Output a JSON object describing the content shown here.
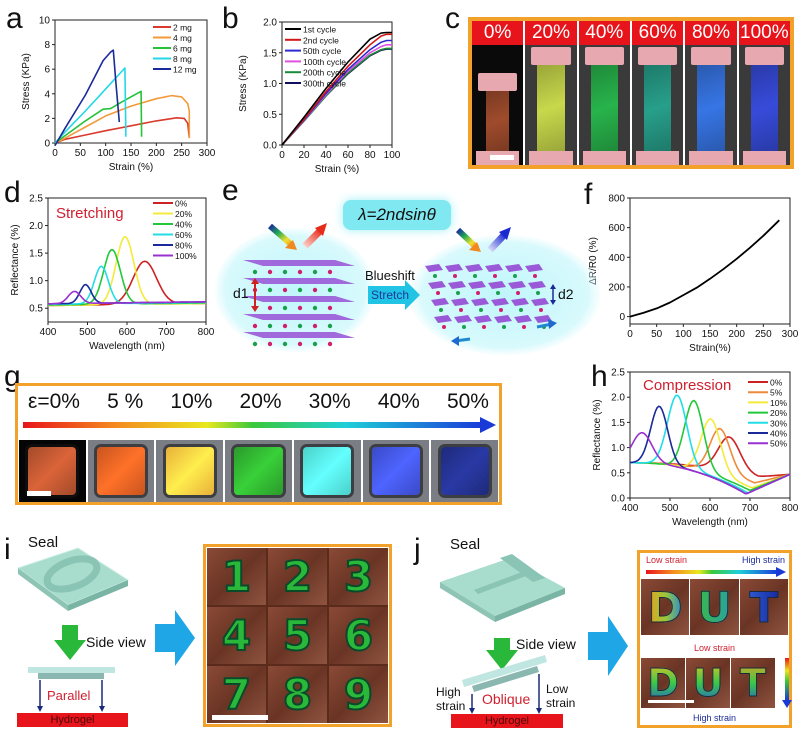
{
  "panel_labels": {
    "a": "a",
    "b": "b",
    "c": "c",
    "d": "d",
    "e": "e",
    "f": "f",
    "g": "g",
    "h": "h",
    "i": "i",
    "j": "j"
  },
  "chart_data": [
    {
      "id": "a",
      "type": "line",
      "xlabel": "Strain (%)",
      "ylabel": "Stress (KPa)",
      "xlim": [
        0,
        300
      ],
      "ylim": [
        0,
        10
      ],
      "xticks": [
        "0",
        "50",
        "100",
        "150",
        "200",
        "250",
        "300"
      ],
      "yticks": [
        "0",
        "2",
        "4",
        "6",
        "8",
        "10"
      ],
      "legend_position": "top-right",
      "series": [
        {
          "name": "2 mg",
          "color": "#d93a2b",
          "x": [
            0,
            20,
            60,
            100,
            150,
            200,
            240,
            255,
            262,
            265
          ],
          "y": [
            0,
            0.3,
            0.65,
            1.0,
            1.4,
            1.8,
            2.05,
            2.0,
            1.6,
            0.4
          ]
        },
        {
          "name": "4 mg",
          "color": "#f39a3a",
          "x": [
            0,
            20,
            60,
            100,
            150,
            200,
            230,
            250,
            262,
            265,
            265
          ],
          "y": [
            0,
            0.4,
            1.3,
            2.2,
            3.0,
            3.6,
            3.85,
            3.75,
            3.2,
            2.6,
            0.4
          ]
        },
        {
          "name": "6 mg",
          "color": "#27c13a",
          "x": [
            0,
            20,
            60,
            95,
            110,
            130,
            170,
            171
          ],
          "y": [
            0,
            0.6,
            1.8,
            2.75,
            2.8,
            3.3,
            4.2,
            0.5
          ]
        },
        {
          "name": "8 mg",
          "color": "#22d8e6",
          "x": [
            0,
            20,
            60,
            100,
            138,
            140
          ],
          "y": [
            0,
            0.9,
            2.6,
            4.4,
            6.1,
            0.5
          ]
        },
        {
          "name": "12 mg",
          "color": "#1a2a9a",
          "x": [
            0,
            20,
            60,
            95,
            110,
            115,
            120,
            127
          ],
          "y": [
            -0.2,
            1.2,
            3.9,
            6.7,
            7.4,
            7.55,
            5.0,
            1.7
          ]
        }
      ]
    },
    {
      "id": "b",
      "type": "line",
      "xlabel": "Strain (%)",
      "ylabel": "Stress (KPa)",
      "xlim": [
        0,
        100
      ],
      "ylim": [
        0,
        2.0
      ],
      "xticks": [
        "0",
        "20",
        "40",
        "60",
        "80",
        "100"
      ],
      "yticks": [
        "0.0",
        "0.5",
        "1.0",
        "1.5",
        "2.0"
      ],
      "legend_position": "top-left",
      "series": [
        {
          "name": "1st cycle",
          "color": "#000000",
          "x": [
            0,
            20,
            40,
            60,
            80,
            90,
            95,
            100
          ],
          "y": [
            0,
            0.45,
            0.92,
            1.35,
            1.72,
            1.82,
            1.83,
            1.83
          ]
        },
        {
          "name": "2nd cycle",
          "color": "#d01818",
          "x": [
            0,
            20,
            40,
            60,
            80,
            90,
            95,
            100
          ],
          "y": [
            0,
            0.42,
            0.87,
            1.28,
            1.63,
            1.77,
            1.8,
            1.8
          ]
        },
        {
          "name": "50th cycle",
          "color": "#2a2ad0",
          "x": [
            0,
            20,
            40,
            60,
            80,
            90,
            95,
            100
          ],
          "y": [
            0,
            0.41,
            0.84,
            1.23,
            1.55,
            1.67,
            1.7,
            1.7
          ]
        },
        {
          "name": "100th cycle",
          "color": "#e050e0",
          "x": [
            0,
            20,
            40,
            60,
            80,
            90,
            95,
            100
          ],
          "y": [
            0,
            0.4,
            0.82,
            1.2,
            1.5,
            1.6,
            1.63,
            1.63
          ]
        },
        {
          "name": "200th cycle",
          "color": "#1a8a3a",
          "x": [
            0,
            20,
            40,
            60,
            80,
            90,
            95,
            100
          ],
          "y": [
            0,
            0.39,
            0.8,
            1.17,
            1.46,
            1.55,
            1.57,
            1.57
          ]
        },
        {
          "name": "300th cycle",
          "color": "#101060",
          "x": [
            0,
            20,
            40,
            60,
            80,
            90,
            95,
            100
          ],
          "y": [
            0,
            0.39,
            0.8,
            1.16,
            1.45,
            1.54,
            1.56,
            1.56
          ]
        }
      ]
    },
    {
      "id": "d",
      "type": "line",
      "title": "Stretching",
      "xlabel": "Wavelength (nm)",
      "ylabel": "Reflectance (%)",
      "xlim": [
        400,
        800
      ],
      "ylim": [
        0.25,
        2.5
      ],
      "xticks": [
        "400",
        "500",
        "600",
        "700",
        "800"
      ],
      "yticks": [
        "0.5",
        "1.0",
        "1.5",
        "2.0",
        "2.5"
      ],
      "legend_position": "top-right",
      "series": [
        {
          "name": "0%",
          "color": "#cc2222",
          "peak": 645,
          "height": 1.33,
          "width": 42,
          "base": 0.55
        },
        {
          "name": "20%",
          "color": "#f4ea3a",
          "peak": 595,
          "height": 1.78,
          "width": 32,
          "base": 0.55
        },
        {
          "name": "40%",
          "color": "#22c83a",
          "peak": 562,
          "height": 1.55,
          "width": 30,
          "base": 0.56
        },
        {
          "name": "60%",
          "color": "#22dde6",
          "peak": 535,
          "height": 1.25,
          "width": 25,
          "base": 0.57
        },
        {
          "name": "80%",
          "color": "#1a2a9a",
          "peak": 495,
          "height": 0.92,
          "width": 20,
          "base": 0.58
        },
        {
          "name": "100%",
          "color": "#9a30d0",
          "peak": 467,
          "height": 0.8,
          "width": 22,
          "base": 0.58
        }
      ]
    },
    {
      "id": "f",
      "type": "line",
      "xlabel": "Strain(%)",
      "ylabel": "ΔR/R0 (%)",
      "xlim": [
        0,
        300
      ],
      "ylim": [
        -50,
        800
      ],
      "xticks": [
        "0",
        "50",
        "100",
        "150",
        "200",
        "250",
        "300"
      ],
      "yticks": [
        "0",
        "200",
        "400",
        "600",
        "800"
      ],
      "series": [
        {
          "name": "response",
          "color": "#000000",
          "x": [
            0,
            25,
            50,
            75,
            100,
            125,
            150,
            175,
            200,
            225,
            250,
            280
          ],
          "y": [
            0,
            25,
            55,
            95,
            145,
            195,
            255,
            320,
            390,
            465,
            545,
            650
          ]
        }
      ]
    },
    {
      "id": "h",
      "type": "line",
      "title": "Compression",
      "xlabel": "Wavelength (nm)",
      "ylabel": "Reflectance (%)",
      "xlim": [
        400,
        800
      ],
      "ylim": [
        0,
        2.5
      ],
      "xticks": [
        "400",
        "500",
        "600",
        "700",
        "800"
      ],
      "yticks": [
        "0.0",
        "0.5",
        "1.0",
        "1.5",
        "2.0",
        "2.5"
      ],
      "legend_position": "top-right",
      "series": [
        {
          "name": "0%",
          "color": "#cc2222",
          "peak": 648,
          "height": 1.35,
          "width": 38,
          "dip": 720,
          "dipval": 0.42
        },
        {
          "name": "5%",
          "color": "#f08a3a",
          "peak": 625,
          "height": 1.55,
          "width": 35,
          "dip": 712,
          "dipval": 0.3
        },
        {
          "name": "10%",
          "color": "#f4ea3a",
          "peak": 602,
          "height": 1.75,
          "width": 34,
          "dip": 705,
          "dipval": 0.2
        },
        {
          "name": "20%",
          "color": "#22c83a",
          "peak": 560,
          "height": 2.05,
          "width": 33,
          "dip": 700,
          "dipval": 0.15
        },
        {
          "name": "30%",
          "color": "#22dde6",
          "peak": 518,
          "height": 2.1,
          "width": 34,
          "dip": 695,
          "dipval": 0.1
        },
        {
          "name": "40%",
          "color": "#1a2a9a",
          "peak": 473,
          "height": 1.83,
          "width": 30,
          "dip": 690,
          "dipval": 0.08
        },
        {
          "name": "50%",
          "color": "#9a30d0",
          "peak": 430,
          "height": 1.28,
          "width": 35,
          "dip": 690,
          "dipval": 0.08
        }
      ]
    }
  ],
  "panel_c": {
    "strains": [
      "0%",
      "20%",
      "40%",
      "60%",
      "80%",
      "100%"
    ],
    "colors": [
      "#7a3a22",
      "#9aa63a",
      "#1f8a3a",
      "#1e7a6a",
      "#2a5ab0",
      "#2a3aa8"
    ]
  },
  "panel_e": {
    "equation": "λ=2ndsinθ",
    "blueshift_label": "Blueshift",
    "stretch_label": "Stretch",
    "d1_label": "d1",
    "d2_label": "d2"
  },
  "panel_g": {
    "strains": [
      "ε=0%",
      "5 %",
      "10%",
      "20%",
      "30%",
      "40%",
      "50%"
    ],
    "colors": [
      "#a24a2a",
      "#c8541e",
      "#e8b03a",
      "#2a9a2a",
      "#4ad0c8",
      "#3a4ac8",
      "#1e2a7a"
    ]
  },
  "panel_i": {
    "seal_label": "Seal",
    "side_view_label": "Side view",
    "mode_label": "Parallel",
    "hydrogel_label": "Hydrogel",
    "digits": [
      "1",
      "2",
      "3",
      "4",
      "5",
      "6",
      "7",
      "8",
      "9"
    ]
  },
  "panel_j": {
    "seal_label": "Seal",
    "side_view_label": "Side view",
    "mode_label": "Oblique",
    "hydrogel_label": "Hydrogel",
    "high_strain_label": "High strain",
    "low_strain_label": "Low strain",
    "gradient_low": "Low  strain",
    "gradient_high": "High  strain",
    "mid_low_strain": "Low  strain",
    "bottom_high_strain": "High  strain",
    "letters": [
      "D",
      "U",
      "T"
    ]
  }
}
